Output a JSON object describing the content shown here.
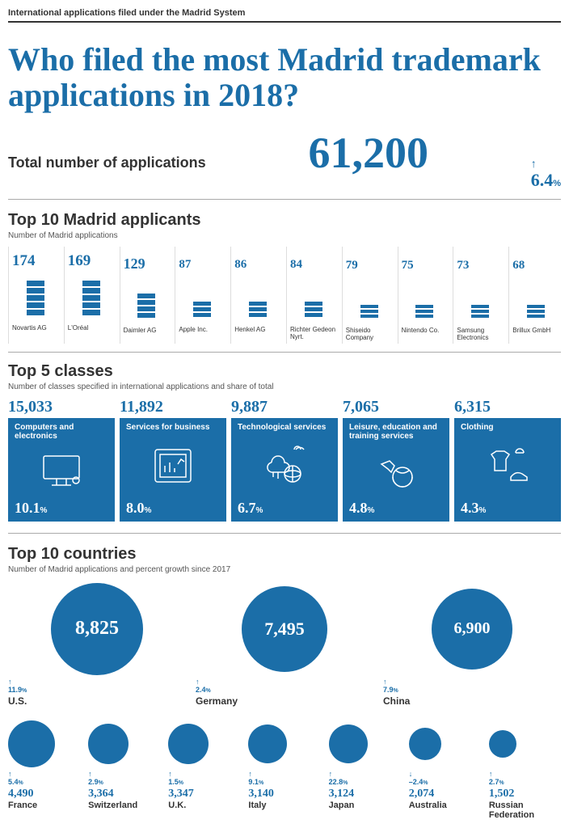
{
  "header_label": "International applications filed under the Madrid System",
  "title": "Who filed the most Madrid trademark applications in 2018?",
  "total": {
    "label": "Total number of applications",
    "value": "61,200",
    "growth": "6.4",
    "growth_direction": "up"
  },
  "applicants": {
    "title": "Top 10 Madrid applicants",
    "subtitle": "Number of Madrid applications",
    "max_value": 174,
    "items": [
      {
        "name": "Novartis AG",
        "value": 174,
        "value_fontsize": 19,
        "bars": [
          7,
          7,
          7,
          7,
          7
        ]
      },
      {
        "name": "L'Oréal",
        "value": 169,
        "value_fontsize": 19,
        "bars": [
          7,
          7,
          7,
          7,
          7
        ]
      },
      {
        "name": "Daimler AG",
        "value": 129,
        "value_fontsize": 18,
        "bars": [
          6,
          6,
          6,
          6
        ]
      },
      {
        "name": "Apple Inc.",
        "value": 87,
        "value_fontsize": 15,
        "bars": [
          5,
          5,
          5
        ]
      },
      {
        "name": "Henkel AG",
        "value": 86,
        "value_fontsize": 15,
        "bars": [
          5,
          5,
          5
        ]
      },
      {
        "name": "Richter Gedeon Nyrt.",
        "value": 84,
        "value_fontsize": 15,
        "bars": [
          5,
          5,
          5
        ]
      },
      {
        "name": "Shiseido Company",
        "value": 79,
        "value_fontsize": 15,
        "bars": [
          4,
          4,
          4
        ]
      },
      {
        "name": "Nintendo Co.",
        "value": 75,
        "value_fontsize": 15,
        "bars": [
          4,
          4,
          4
        ]
      },
      {
        "name": "Samsung Electronics",
        "value": 73,
        "value_fontsize": 15,
        "bars": [
          4,
          4,
          4
        ]
      },
      {
        "name": "Brillux GmbH",
        "value": 68,
        "value_fontsize": 15,
        "bars": [
          4,
          4,
          4
        ]
      }
    ]
  },
  "classes": {
    "title": "Top 5 classes",
    "subtitle": "Number of classes specified in international applications and share of total",
    "items": [
      {
        "count": "15,033",
        "label": "Computers and electronics",
        "pct": "10.1",
        "icon": "monitor"
      },
      {
        "count": "11,892",
        "label": "Services for business",
        "pct": "8.0",
        "icon": "tablet-chart"
      },
      {
        "count": "9,887",
        "label": "Technological services",
        "pct": "6.7",
        "icon": "cloud-globe"
      },
      {
        "count": "7,065",
        "label": "Leisure, education and training services",
        "pct": "4.8",
        "icon": "plane-globe"
      },
      {
        "count": "6,315",
        "label": "Clothing",
        "pct": "4.3",
        "icon": "shirt-shoe"
      }
    ]
  },
  "countries": {
    "title": "Top 10 countries",
    "subtitle": "Number of Madrid applications and percent growth since 2017",
    "top3": [
      {
        "name": "U.S.",
        "value": "8,825",
        "growth": "11.9",
        "dir": "up",
        "diameter": 114,
        "font": 24
      },
      {
        "name": "Germany",
        "value": "7,495",
        "growth": "2.4",
        "dir": "up",
        "diameter": 106,
        "font": 22
      },
      {
        "name": "China",
        "value": "6,900",
        "growth": "7.9",
        "dir": "up",
        "diameter": 100,
        "font": 20
      }
    ],
    "rest": [
      {
        "name": "France",
        "value": "4,490",
        "growth": "5.4",
        "dir": "up",
        "diameter": 58
      },
      {
        "name": "Switzerland",
        "value": "3,364",
        "growth": "2.9",
        "dir": "up",
        "diameter": 50
      },
      {
        "name": "U.K.",
        "value": "3,347",
        "growth": "1.5",
        "dir": "up",
        "diameter": 50
      },
      {
        "name": "Italy",
        "value": "3,140",
        "growth": "9.1",
        "dir": "up",
        "diameter": 48
      },
      {
        "name": "Japan",
        "value": "3,124",
        "growth": "22.8",
        "dir": "up",
        "diameter": 48
      },
      {
        "name": "Australia",
        "value": "2,074",
        "growth": "–2.4",
        "dir": "down",
        "diameter": 40
      },
      {
        "name": "Russian Federation",
        "value": "1,502",
        "growth": "2.7",
        "dir": "up",
        "diameter": 34
      }
    ]
  },
  "colors": {
    "primary": "#1b6ea8",
    "text": "#333333",
    "divider": "#aaaaaa",
    "background": "#ffffff"
  }
}
